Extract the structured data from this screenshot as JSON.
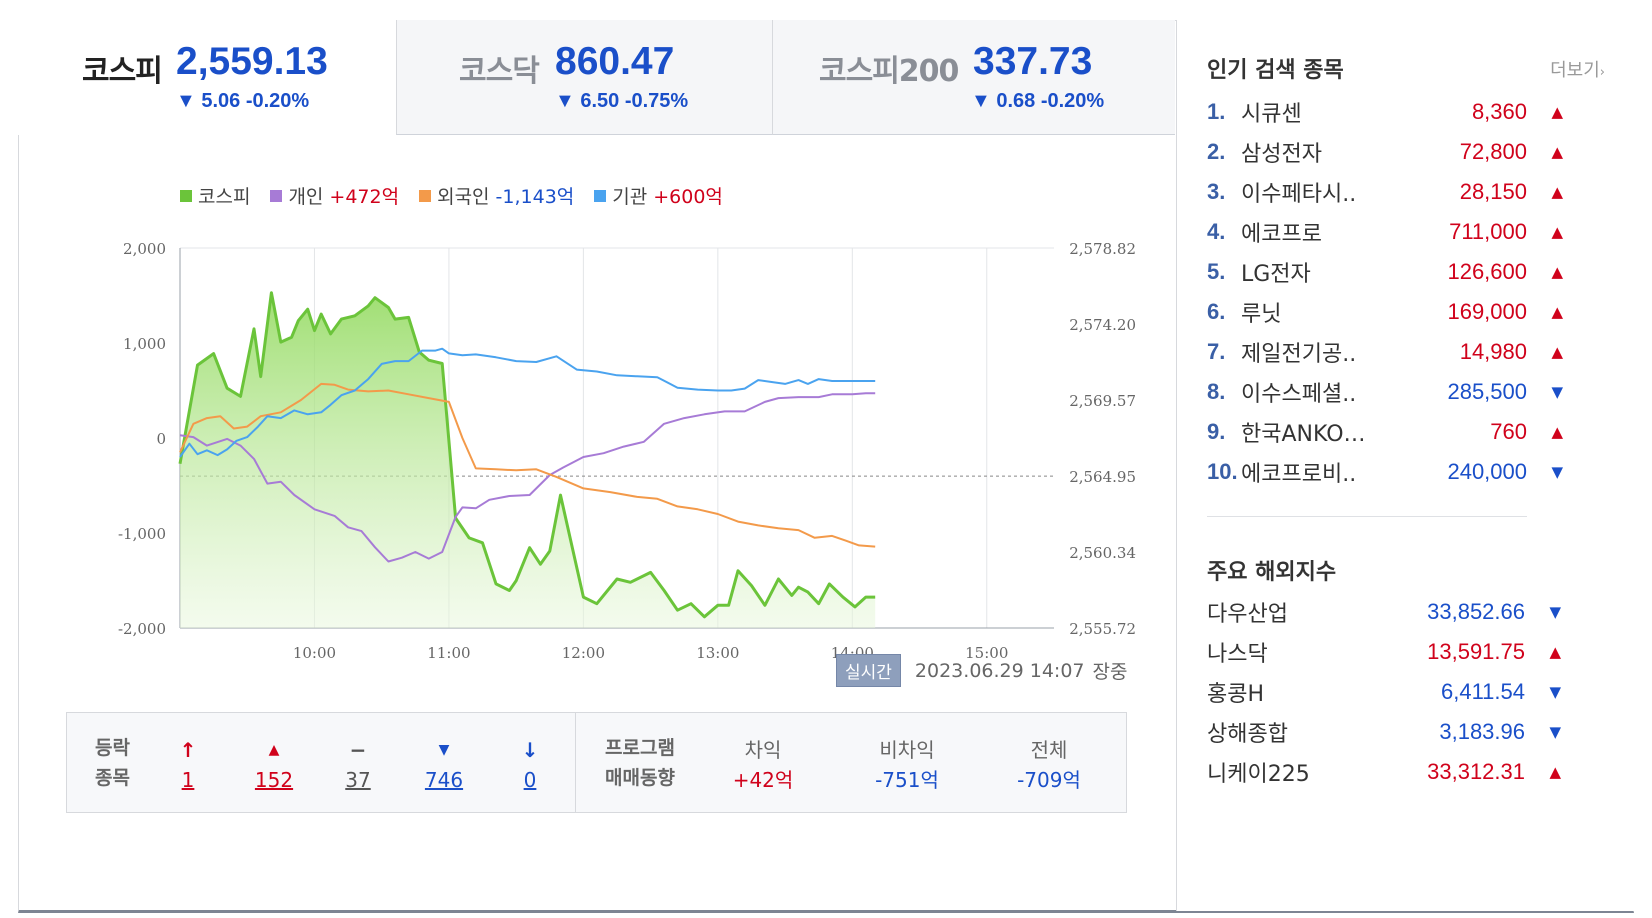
{
  "tabs": [
    {
      "name": "코스피",
      "value": "2,559.13",
      "change": "▼ 5.06 -0.20%"
    },
    {
      "name": "코스닥",
      "value": "860.47",
      "change": "▼ 6.50 -0.75%"
    },
    {
      "name": "코스피200",
      "value": "337.73",
      "change": "▼ 0.68 -0.20%"
    }
  ],
  "legend": [
    {
      "label": "코스피",
      "value": "",
      "color": "#6bc43a"
    },
    {
      "label": "개인",
      "value": "+472억",
      "color": "#a77bd6"
    },
    {
      "label": "외국인",
      "value": "-1,143억",
      "color": "#f39a4a"
    },
    {
      "label": "기관",
      "value": "+600억",
      "color": "#4aa3ef"
    }
  ],
  "chart_data": {
    "type": "line",
    "left_axis_ticks": [
      "2,000",
      "1,000",
      "0",
      "-1,000",
      "-2,000"
    ],
    "right_axis_ticks": [
      "2,578.82",
      "2,574.20",
      "2,569.57",
      "2,564.95",
      "2,560.34",
      "2,555.72"
    ],
    "x_ticks": [
      "10:00",
      "11:00",
      "12:00",
      "13:00",
      "14:00",
      "15:00"
    ],
    "x_range_hours": [
      9.0,
      15.5
    ],
    "left_range": [
      -2000,
      2000
    ],
    "right_range": [
      2555.72,
      2578.82
    ],
    "reference_value": 2564.95,
    "series": [
      {
        "name": "코스피",
        "axis": "right",
        "color": "#6bc43a",
        "x": [
          9.0,
          9.13,
          9.25,
          9.35,
          9.45,
          9.55,
          9.6,
          9.68,
          9.75,
          9.83,
          9.88,
          9.95,
          10.0,
          10.05,
          10.12,
          10.2,
          10.3,
          10.4,
          10.45,
          10.55,
          10.6,
          10.7,
          10.78,
          10.85,
          10.95,
          11.05,
          11.15,
          11.25,
          11.35,
          11.45,
          11.5,
          11.6,
          11.68,
          11.75,
          11.83,
          12.0,
          12.1,
          12.25,
          12.35,
          12.5,
          12.6,
          12.7,
          12.8,
          12.9,
          13.0,
          13.08,
          13.15,
          13.25,
          13.35,
          13.45,
          13.55,
          13.6,
          13.67,
          13.75,
          13.83,
          13.93,
          14.02,
          14.1,
          14.17
        ],
        "y": [
          2565.7,
          2571.7,
          2572.4,
          2570.3,
          2569.8,
          2573.9,
          2571.0,
          2576.1,
          2573.1,
          2573.4,
          2574.4,
          2575.1,
          2573.8,
          2574.8,
          2573.6,
          2574.5,
          2574.7,
          2575.3,
          2575.8,
          2575.2,
          2574.5,
          2574.6,
          2572.5,
          2572.0,
          2571.8,
          2562.4,
          2561.2,
          2560.9,
          2558.4,
          2558.0,
          2558.6,
          2560.6,
          2559.6,
          2560.4,
          2563.8,
          2557.6,
          2557.2,
          2558.7,
          2558.5,
          2559.1,
          2558.0,
          2556.8,
          2557.2,
          2556.4,
          2557.1,
          2557.1,
          2559.2,
          2558.3,
          2557.1,
          2558.7,
          2557.7,
          2558.2,
          2557.9,
          2557.2,
          2558.4,
          2557.6,
          2557.0,
          2557.6,
          2557.6
        ]
      },
      {
        "name": "개인",
        "axis": "left",
        "color": "#a77bd6",
        "x": [
          9.0,
          9.1,
          9.2,
          9.35,
          9.45,
          9.55,
          9.65,
          9.75,
          9.85,
          10.0,
          10.15,
          10.25,
          10.35,
          10.45,
          10.55,
          10.65,
          10.75,
          10.85,
          10.95,
          11.05,
          11.1,
          11.2,
          11.3,
          11.45,
          11.6,
          11.75,
          11.85,
          12.0,
          12.15,
          12.3,
          12.45,
          12.6,
          12.75,
          12.9,
          13.05,
          13.2,
          13.35,
          13.45,
          13.6,
          13.75,
          13.85,
          14.0,
          14.1,
          14.17
        ],
        "y": [
          30,
          10,
          -80,
          -10,
          -80,
          -220,
          -480,
          -460,
          -600,
          -750,
          -820,
          -940,
          -980,
          -1150,
          -1300,
          -1260,
          -1200,
          -1270,
          -1200,
          -830,
          -730,
          -740,
          -650,
          -610,
          -600,
          -390,
          -310,
          -200,
          -160,
          -90,
          -40,
          150,
          210,
          250,
          280,
          280,
          380,
          420,
          430,
          430,
          460,
          460,
          472,
          472
        ]
      },
      {
        "name": "외국인",
        "axis": "left",
        "color": "#f39a4a",
        "x": [
          9.0,
          9.1,
          9.2,
          9.3,
          9.4,
          9.5,
          9.6,
          9.75,
          9.9,
          10.05,
          10.15,
          10.25,
          10.4,
          10.55,
          10.7,
          10.85,
          11.0,
          11.1,
          11.2,
          11.35,
          11.5,
          11.65,
          11.8,
          12.0,
          12.2,
          12.4,
          12.55,
          12.7,
          12.85,
          13.0,
          13.15,
          13.3,
          13.45,
          13.6,
          13.72,
          13.85,
          13.95,
          14.05,
          14.17
        ],
        "y": [
          -150,
          150,
          210,
          230,
          100,
          120,
          230,
          270,
          400,
          570,
          560,
          510,
          490,
          500,
          460,
          420,
          380,
          0,
          -320,
          -330,
          -340,
          -330,
          -410,
          -530,
          -570,
          -620,
          -640,
          -720,
          -750,
          -800,
          -880,
          -920,
          -950,
          -970,
          -1050,
          -1030,
          -1080,
          -1130,
          -1143
        ]
      },
      {
        "name": "기관",
        "axis": "left",
        "color": "#4aa3ef",
        "x": [
          9.0,
          9.07,
          9.13,
          9.2,
          9.28,
          9.35,
          9.42,
          9.5,
          9.58,
          9.65,
          9.75,
          9.85,
          9.95,
          10.05,
          10.12,
          10.2,
          10.3,
          10.4,
          10.5,
          10.6,
          10.7,
          10.8,
          10.9,
          10.95,
          11.0,
          11.1,
          11.2,
          11.35,
          11.5,
          11.65,
          11.8,
          11.95,
          12.1,
          12.25,
          12.4,
          12.55,
          12.7,
          12.85,
          13.0,
          13.1,
          13.2,
          13.3,
          13.4,
          13.5,
          13.6,
          13.67,
          13.75,
          13.85,
          14.0,
          14.17
        ],
        "y": [
          -200,
          -60,
          -170,
          -130,
          -180,
          -120,
          -30,
          10,
          120,
          230,
          210,
          290,
          250,
          270,
          350,
          450,
          500,
          620,
          780,
          810,
          810,
          920,
          920,
          940,
          890,
          870,
          880,
          850,
          810,
          800,
          860,
          720,
          700,
          660,
          650,
          640,
          530,
          510,
          500,
          500,
          520,
          610,
          590,
          570,
          610,
          570,
          620,
          600,
          600,
          600
        ]
      }
    ]
  },
  "realtime": {
    "badge": "실시간",
    "datetime": "2023.06.29 14:07",
    "status": "장중"
  },
  "stats": {
    "label_line1": "등락",
    "label_line2": "종목",
    "items": [
      {
        "icon": "↑",
        "value": "1",
        "color": "#d0021b"
      },
      {
        "icon": "▲",
        "value": "152",
        "color": "#d0021b"
      },
      {
        "icon": "−",
        "value": "37",
        "color": "#555555"
      },
      {
        "icon": "▼",
        "value": "746",
        "color": "#1a4fc9"
      },
      {
        "icon": "↓",
        "value": "0",
        "color": "#1a4fc9"
      }
    ],
    "program_line1": "프로그램",
    "program_line2": "매매동향",
    "program": [
      {
        "label": "차익",
        "value": "+42억",
        "color": "#d0021b"
      },
      {
        "label": "비차익",
        "value": "-751억",
        "color": "#1a4fc9"
      },
      {
        "label": "전체",
        "value": "-709억",
        "color": "#1a4fc9"
      }
    ]
  },
  "popular": {
    "title": "인기 검색 종목",
    "more": "더보기",
    "items": [
      {
        "rank": "1.",
        "name": "시큐센",
        "price": "8,360",
        "dir": "▲",
        "color": "#d0021b"
      },
      {
        "rank": "2.",
        "name": "삼성전자",
        "price": "72,800",
        "dir": "▲",
        "color": "#d0021b"
      },
      {
        "rank": "3.",
        "name": "이수페타시..",
        "price": "28,150",
        "dir": "▲",
        "color": "#d0021b"
      },
      {
        "rank": "4.",
        "name": "에코프로",
        "price": "711,000",
        "dir": "▲",
        "color": "#d0021b"
      },
      {
        "rank": "5.",
        "name": "LG전자",
        "price": "126,600",
        "dir": "▲",
        "color": "#d0021b"
      },
      {
        "rank": "6.",
        "name": "루닛",
        "price": "169,000",
        "dir": "▲",
        "color": "#d0021b"
      },
      {
        "rank": "7.",
        "name": "제일전기공..",
        "price": "14,980",
        "dir": "▲",
        "color": "#d0021b"
      },
      {
        "rank": "8.",
        "name": "이수스페셜..",
        "price": "285,500",
        "dir": "▼",
        "color": "#1a4fc9"
      },
      {
        "rank": "9.",
        "name": "한국ANKO…",
        "price": "760",
        "dir": "▲",
        "color": "#d0021b"
      },
      {
        "rank": "10.",
        "name": "에코프로비..",
        "price": "240,000",
        "dir": "▼",
        "color": "#1a4fc9"
      }
    ]
  },
  "overseas": {
    "title": "주요 해외지수",
    "items": [
      {
        "name": "다우산업",
        "price": "33,852.66",
        "dir": "▼",
        "color": "#1a4fc9"
      },
      {
        "name": "나스닥",
        "price": "13,591.75",
        "dir": "▲",
        "color": "#d0021b"
      },
      {
        "name": "홍콩H",
        "price": "6,411.54",
        "dir": "▼",
        "color": "#1a4fc9"
      },
      {
        "name": "상해종합",
        "price": "3,183.96",
        "dir": "▼",
        "color": "#1a4fc9"
      },
      {
        "name": "니케이225",
        "price": "33,312.31",
        "dir": "▲",
        "color": "#d0021b"
      }
    ]
  }
}
